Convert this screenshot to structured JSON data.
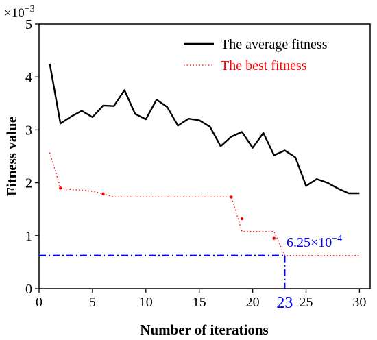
{
  "chart_data": {
    "type": "line",
    "xlabel": "Number of iterations",
    "ylabel": "Fitness value",
    "y_multiplier_label": "×10",
    "y_multiplier_exp": "−3",
    "xlim": [
      0,
      31
    ],
    "ylim": [
      0,
      5
    ],
    "x_ticks": [
      0,
      5,
      10,
      15,
      20,
      25,
      30
    ],
    "x_tick_labels": [
      "0",
      "5",
      "10",
      "15",
      "20",
      "25",
      "30"
    ],
    "y_ticks": [
      0,
      1,
      2,
      3,
      4,
      5
    ],
    "y_tick_labels": [
      "0",
      "1",
      "2",
      "3",
      "4",
      "5"
    ],
    "legend_position": "top-right",
    "series": [
      {
        "name": "The average fitness",
        "color": "#000000",
        "style": "solid",
        "x": [
          1,
          2,
          3,
          4,
          5,
          6,
          7,
          8,
          9,
          10,
          11,
          12,
          13,
          14,
          15,
          16,
          17,
          18,
          19,
          20,
          21,
          22,
          23,
          24,
          25,
          26,
          27,
          28,
          29,
          30
        ],
        "values": [
          4.25,
          3.12,
          3.25,
          3.36,
          3.24,
          3.46,
          3.45,
          3.75,
          3.3,
          3.2,
          3.57,
          3.43,
          3.08,
          3.21,
          3.18,
          3.06,
          2.69,
          2.87,
          2.96,
          2.66,
          2.94,
          2.52,
          2.61,
          2.48,
          1.94,
          2.07,
          2.0,
          1.89,
          1.8,
          1.8
        ]
      },
      {
        "name": "The best fitness",
        "color": "#ff0000",
        "style": "dotted",
        "x": [
          1,
          2,
          3,
          4,
          5,
          6,
          7,
          8,
          9,
          10,
          11,
          12,
          13,
          14,
          15,
          16,
          17,
          18,
          19,
          20,
          21,
          22,
          23,
          24,
          25,
          26,
          27,
          28,
          29,
          30
        ],
        "values": [
          2.57,
          1.9,
          1.87,
          1.86,
          1.84,
          1.79,
          1.73,
          1.73,
          1.73,
          1.73,
          1.73,
          1.73,
          1.73,
          1.73,
          1.73,
          1.73,
          1.73,
          1.73,
          1.08,
          1.08,
          1.08,
          1.08,
          0.625,
          0.625,
          0.625,
          0.625,
          0.625,
          0.625,
          0.625,
          0.625
        ]
      }
    ],
    "annotation": {
      "value_mantissa": "6.25×10",
      "value_exp": "−4",
      "x": 23,
      "y": 0.625,
      "x_label": "23",
      "color": "#0000ff"
    }
  }
}
